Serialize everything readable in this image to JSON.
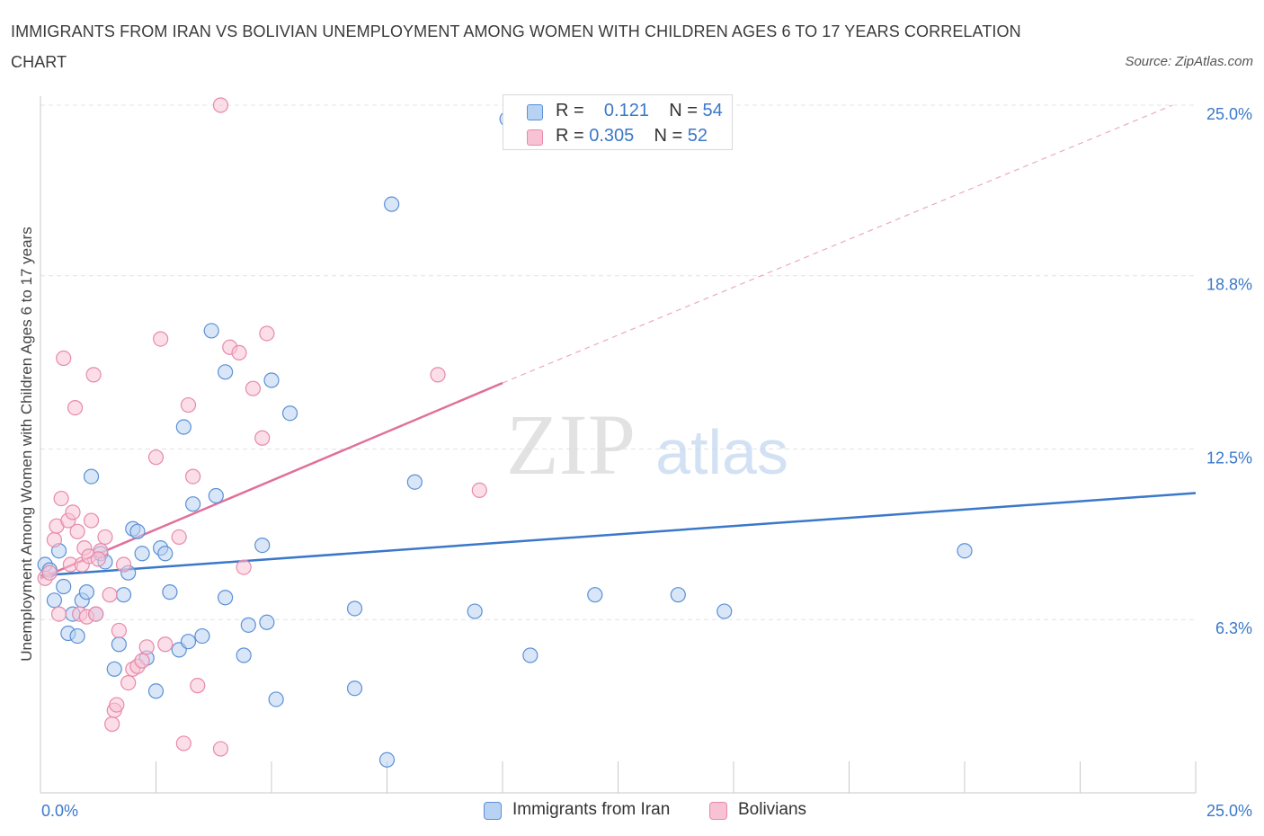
{
  "title": "IMMIGRANTS FROM IRAN VS BOLIVIAN UNEMPLOYMENT AMONG WOMEN WITH CHILDREN AGES 6 TO 17 YEARS CORRELATION CHART",
  "source": "Source: ZipAtlas.com",
  "watermark": {
    "zip": "ZIP",
    "atlas": "atlas"
  },
  "colors": {
    "blue": "#3a78c9",
    "blue_fill": "#b8d2f3",
    "pink": "#e0709a",
    "pink_fill": "#f7c3d4",
    "axis_text": "#3a78c9",
    "grid": "#e3e3e3"
  },
  "legend_top": {
    "blue": {
      "r_label": "R =",
      "r_value": "0.121",
      "n_label": "N =",
      "n_value": "54"
    },
    "pink": {
      "r_label": "R =",
      "r_value": "0.305",
      "n_label": "N =",
      "n_value": "52"
    }
  },
  "chart_data": {
    "type": "scatter",
    "xlabel": "",
    "ylabel": "Unemployment Among Women with Children Ages 6 to 17 years",
    "xlim": [
      0,
      25
    ],
    "ylim": [
      0,
      25
    ],
    "x_tick_labels": [
      "0.0%",
      "25.0%"
    ],
    "y_ticks": [
      6.3,
      12.5,
      18.8,
      25.0
    ],
    "y_tick_labels": [
      "6.3%",
      "12.5%",
      "18.8%",
      "25.0%"
    ],
    "grid": true,
    "legend_position": "bottom",
    "series": [
      {
        "name": "Immigrants from Iran",
        "color": "#3a78c9",
        "trend": {
          "x0": 0,
          "y0": 7.9,
          "x1": 25,
          "y1": 10.9,
          "dashed_extension": false
        },
        "points": [
          [
            0.1,
            8.3
          ],
          [
            0.2,
            8.1
          ],
          [
            0.3,
            7.0
          ],
          [
            0.4,
            8.8
          ],
          [
            0.5,
            7.5
          ],
          [
            0.6,
            5.8
          ],
          [
            0.7,
            6.5
          ],
          [
            0.8,
            5.7
          ],
          [
            0.9,
            7.0
          ],
          [
            1.0,
            7.3
          ],
          [
            1.1,
            11.5
          ],
          [
            1.2,
            6.5
          ],
          [
            1.3,
            8.7
          ],
          [
            1.4,
            8.4
          ],
          [
            1.6,
            4.5
          ],
          [
            1.7,
            5.4
          ],
          [
            1.8,
            7.2
          ],
          [
            1.9,
            8.0
          ],
          [
            2.0,
            9.6
          ],
          [
            2.1,
            9.5
          ],
          [
            2.2,
            8.7
          ],
          [
            2.3,
            4.9
          ],
          [
            2.5,
            3.7
          ],
          [
            2.6,
            8.9
          ],
          [
            2.7,
            8.7
          ],
          [
            2.8,
            7.3
          ],
          [
            3.0,
            5.2
          ],
          [
            3.1,
            13.3
          ],
          [
            3.2,
            5.5
          ],
          [
            3.3,
            10.5
          ],
          [
            3.5,
            5.7
          ],
          [
            3.7,
            16.8
          ],
          [
            3.8,
            10.8
          ],
          [
            4.0,
            15.3
          ],
          [
            4.0,
            7.1
          ],
          [
            4.4,
            5.0
          ],
          [
            4.5,
            6.1
          ],
          [
            4.8,
            9.0
          ],
          [
            4.9,
            6.2
          ],
          [
            5.0,
            15.0
          ],
          [
            5.1,
            3.4
          ],
          [
            5.4,
            13.8
          ],
          [
            6.8,
            6.7
          ],
          [
            6.8,
            3.8
          ],
          [
            7.5,
            1.2
          ],
          [
            7.6,
            21.4
          ],
          [
            8.1,
            11.3
          ],
          [
            9.4,
            6.6
          ],
          [
            10.1,
            24.5
          ],
          [
            10.6,
            5.0
          ],
          [
            12.0,
            7.2
          ],
          [
            13.8,
            7.2
          ],
          [
            14.8,
            6.6
          ],
          [
            20.0,
            8.8
          ]
        ]
      },
      {
        "name": "Bolivians",
        "color": "#e0709a",
        "trend": {
          "x0": 0,
          "y0": 7.8,
          "x1": 10,
          "y1": 14.9,
          "dashed_extension": true,
          "dash_x1": 24.5,
          "dash_y1": 25.0
        },
        "points": [
          [
            0.1,
            7.8
          ],
          [
            0.2,
            8.0
          ],
          [
            0.3,
            9.2
          ],
          [
            0.35,
            9.7
          ],
          [
            0.4,
            6.5
          ],
          [
            0.45,
            10.7
          ],
          [
            0.5,
            15.8
          ],
          [
            0.6,
            9.9
          ],
          [
            0.65,
            8.3
          ],
          [
            0.7,
            10.2
          ],
          [
            0.75,
            14.0
          ],
          [
            0.8,
            9.5
          ],
          [
            0.85,
            6.5
          ],
          [
            0.9,
            8.3
          ],
          [
            0.95,
            8.9
          ],
          [
            1.0,
            6.4
          ],
          [
            1.05,
            8.6
          ],
          [
            1.1,
            9.9
          ],
          [
            1.15,
            15.2
          ],
          [
            1.2,
            6.5
          ],
          [
            1.3,
            8.8
          ],
          [
            1.4,
            9.3
          ],
          [
            1.5,
            7.2
          ],
          [
            1.55,
            2.5
          ],
          [
            1.6,
            3.0
          ],
          [
            1.65,
            3.2
          ],
          [
            1.7,
            5.9
          ],
          [
            1.8,
            8.3
          ],
          [
            1.9,
            4.0
          ],
          [
            2.0,
            4.5
          ],
          [
            2.1,
            4.6
          ],
          [
            2.2,
            4.8
          ],
          [
            2.3,
            5.3
          ],
          [
            2.5,
            12.2
          ],
          [
            2.6,
            16.5
          ],
          [
            2.7,
            5.4
          ],
          [
            3.0,
            9.3
          ],
          [
            3.1,
            1.8
          ],
          [
            3.2,
            14.1
          ],
          [
            3.3,
            11.5
          ],
          [
            3.4,
            3.9
          ],
          [
            3.9,
            1.6
          ],
          [
            3.9,
            25.0
          ],
          [
            4.1,
            16.2
          ],
          [
            4.3,
            16.0
          ],
          [
            4.4,
            8.2
          ],
          [
            4.6,
            14.7
          ],
          [
            4.8,
            12.9
          ],
          [
            4.9,
            16.7
          ],
          [
            8.6,
            15.2
          ],
          [
            9.5,
            11.0
          ],
          [
            1.25,
            8.5
          ]
        ]
      }
    ]
  }
}
